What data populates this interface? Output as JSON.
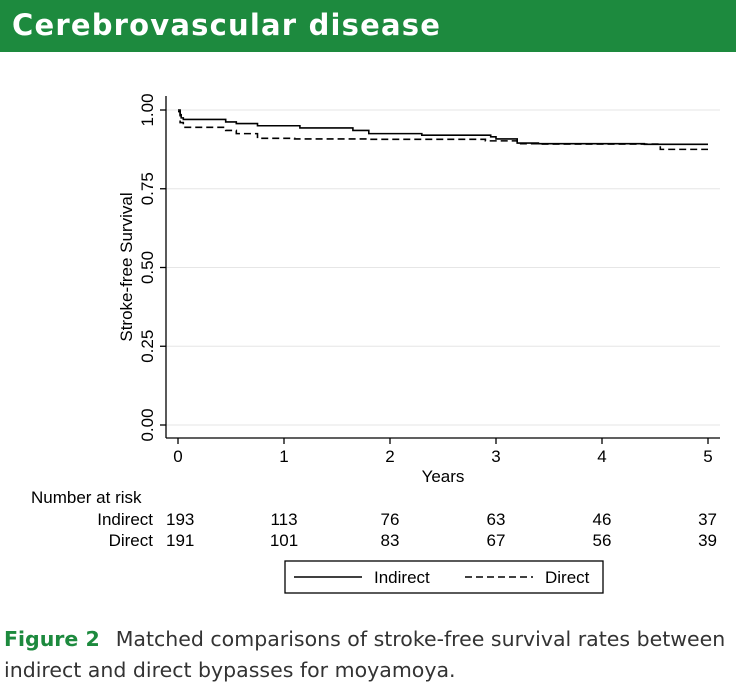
{
  "header": {
    "title": "Cerebrovascular disease"
  },
  "caption": {
    "label": "Figure 2",
    "text": "Matched comparisons of stroke-free survival rates between indirect and direct bypasses for moyamoya."
  },
  "colors": {
    "banner": "#1d8a3e",
    "caption_label": "#1d8a3e",
    "grid": "#e6e6e6"
  },
  "chart_data": {
    "type": "line",
    "subtype": "kaplan-meier step",
    "title": "",
    "xlabel": "Years",
    "ylabel": "Stroke-free Survival",
    "xlim": [
      0,
      5
    ],
    "ylim": [
      0,
      1
    ],
    "x_ticks": [
      "0",
      "1",
      "2",
      "3",
      "4",
      "5"
    ],
    "y_ticks": [
      "0.00",
      "0.25",
      "0.50",
      "0.75",
      "1.00"
    ],
    "grid": true,
    "series": [
      {
        "name": "Indirect",
        "style": "solid",
        "x": [
          0,
          0.02,
          0.03,
          0.05,
          0.45,
          0.55,
          0.75,
          1.15,
          1.65,
          1.8,
          2.3,
          2.95,
          3.0,
          3.2,
          3.4,
          3.7,
          4.4,
          5.0
        ],
        "y": [
          1.0,
          0.985,
          0.975,
          0.97,
          0.962,
          0.957,
          0.95,
          0.943,
          0.935,
          0.925,
          0.92,
          0.915,
          0.908,
          0.895,
          0.893,
          0.893,
          0.891,
          0.891
        ]
      },
      {
        "name": "Direct",
        "style": "dashed",
        "x": [
          0,
          0.02,
          0.05,
          0.45,
          0.55,
          0.75,
          1.1,
          1.8,
          2.9,
          3.2,
          3.4,
          4.55,
          5.0
        ],
        "y": [
          0.995,
          0.96,
          0.945,
          0.935,
          0.925,
          0.91,
          0.908,
          0.907,
          0.902,
          0.893,
          0.892,
          0.875,
          0.875
        ]
      }
    ],
    "risk_table": {
      "header": "Number at risk",
      "rows": [
        {
          "label": "Indirect",
          "values": [
            "193",
            "113",
            "76",
            "63",
            "46",
            "37"
          ]
        },
        {
          "label": "Direct",
          "values": [
            "191",
            "101",
            "83",
            "67",
            "56",
            "39"
          ]
        }
      ]
    },
    "legend": {
      "position": "bottom",
      "entries": [
        {
          "label": "Indirect",
          "style": "solid"
        },
        {
          "label": "Direct",
          "style": "dashed"
        }
      ]
    }
  }
}
